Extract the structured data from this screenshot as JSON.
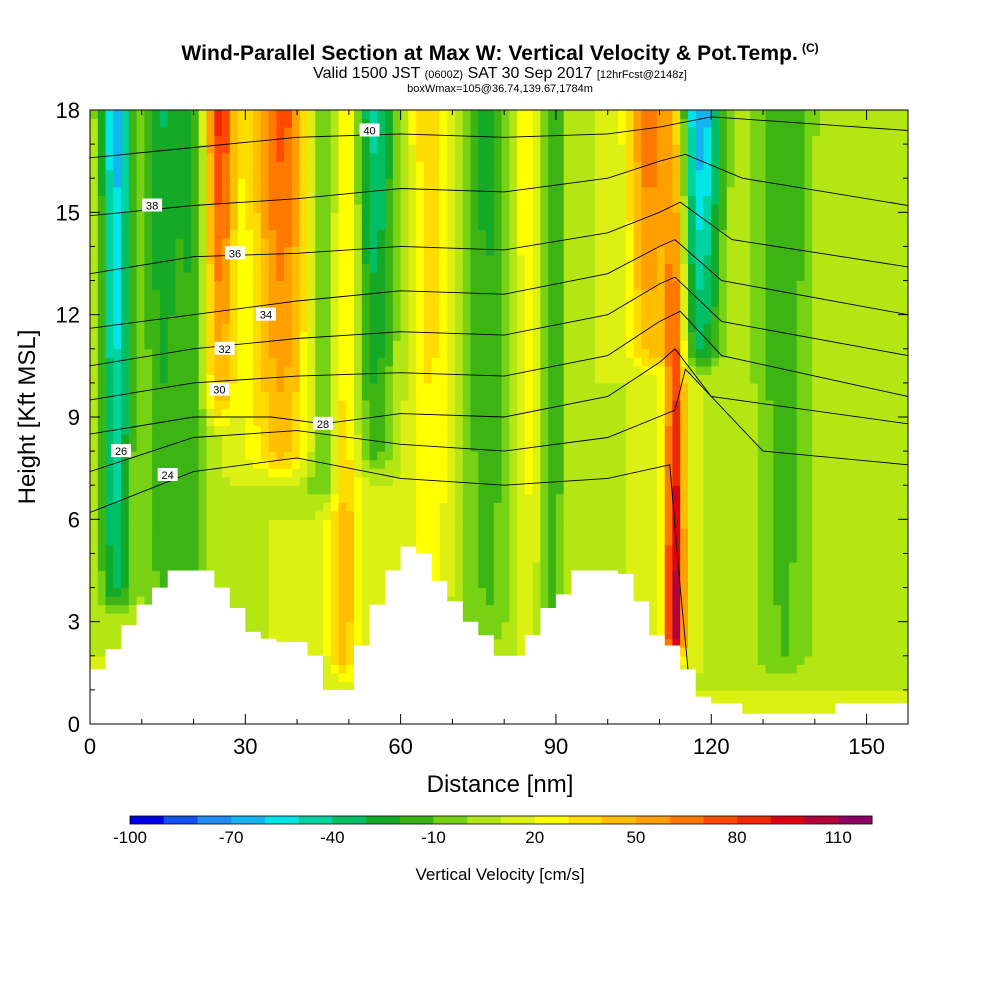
{
  "title": {
    "main": "Wind-Parallel Section at Max W: Vertical Velocity & Pot.Temp.",
    "mark": "(C)",
    "sub_a": "Valid 1500 JST",
    "sub_b": "(0600Z)",
    "sub_c": "SAT 30 Sep 2017",
    "sub_d": "[12hrFcst@2148z]",
    "box": "boxWmax=105@36.74,139.67,1784m"
  },
  "chart_data": {
    "type": "heatmap",
    "xlabel": "Distance [nm]",
    "ylabel": "Height [Kft MSL]",
    "xlim": [
      0,
      158
    ],
    "ylim": [
      0,
      18
    ],
    "x_ticks": [
      0,
      30,
      60,
      90,
      120,
      150
    ],
    "y_ticks": [
      0,
      3,
      6,
      9,
      12,
      15,
      18
    ],
    "colorbar": {
      "label": "Vertical Velocity [cm/s]",
      "min": -100,
      "max": 120,
      "step": 10,
      "tick_labels": [
        "-100",
        "-70",
        "-40",
        "-10",
        "20",
        "50",
        "80",
        "110"
      ],
      "tick_values": [
        -100,
        -70,
        -40,
        -10,
        20,
        50,
        80,
        110
      ],
      "colors": [
        "#0000e6",
        "#1450f0",
        "#1e8cf0",
        "#14b4f0",
        "#00e6e6",
        "#00d2a0",
        "#00be64",
        "#14aa28",
        "#3cb414",
        "#78d214",
        "#b4e614",
        "#dcf014",
        "#ffff00",
        "#ffdc00",
        "#ffbe00",
        "#ffa000",
        "#ff7800",
        "#ff4b00",
        "#f02800",
        "#dc0014",
        "#b4003c",
        "#8c0064"
      ]
    },
    "velocity_columns": [
      {
        "x": 5,
        "w": 3,
        "vmin": -45,
        "vmax": -75,
        "ybot": 4
      },
      {
        "x": 14,
        "w": 4,
        "vmin": -20,
        "vmax": -40,
        "ybot": 3
      },
      {
        "x": 20,
        "w": 3,
        "vmin": -20,
        "vmax": -30,
        "ybot": 3
      },
      {
        "x": 25,
        "w": 3,
        "vmin": 35,
        "vmax": 75,
        "ybot": 9.5
      },
      {
        "x": 37,
        "w": 6,
        "vmin": 35,
        "vmax": 65,
        "ybot": 8
      },
      {
        "x": 46,
        "w": 4,
        "vmin": -25,
        "vmax": -40,
        "ybot": 7
      },
      {
        "x": 49,
        "w": 3,
        "vmin": 35,
        "vmax": 45,
        "ybot": 2
      },
      {
        "x": 55,
        "w": 4,
        "vmin": -25,
        "vmax": -55,
        "ybot": 8
      },
      {
        "x": 66,
        "w": 4,
        "vmin": 15,
        "vmax": 30,
        "ybot": 4
      },
      {
        "x": 77,
        "w": 6,
        "vmin": -20,
        "vmax": -35,
        "ybot": 3
      },
      {
        "x": 85,
        "w": 4,
        "vmin": 15,
        "vmax": 30,
        "ybot": 3
      },
      {
        "x": 89,
        "w": 3,
        "vmin": -30,
        "vmax": -35,
        "ybot": 3
      },
      {
        "x": 108,
        "w": 4,
        "vmin": 35,
        "vmax": 60,
        "ybot": 11
      },
      {
        "x": 113,
        "w": 2,
        "vmin": 100,
        "vmax": 35,
        "ybot": 2.5
      },
      {
        "x": 118,
        "w": 4,
        "vmin": -40,
        "vmax": -80,
        "ybot": 11
      },
      {
        "x": 134,
        "w": 6,
        "vmin": -20,
        "vmax": -30,
        "ybot": 2
      }
    ],
    "theta_contours": [
      {
        "label": "24",
        "label_x": 15,
        "label_y": 7.3,
        "points": [
          [
            0,
            6.2
          ],
          [
            20,
            7.4
          ],
          [
            40,
            7.8
          ],
          [
            60,
            7.2
          ],
          [
            80,
            7.0
          ],
          [
            100,
            7.2
          ],
          [
            112,
            7.6
          ],
          [
            114,
            4
          ],
          [
            116,
            0.8
          ]
        ]
      },
      {
        "label": "26",
        "label_x": 6,
        "label_y": 8.0,
        "points": [
          [
            0,
            7.4
          ],
          [
            20,
            8.4
          ],
          [
            40,
            8.6
          ],
          [
            60,
            8.2
          ],
          [
            80,
            8.0
          ],
          [
            100,
            8.4
          ],
          [
            113,
            9.2
          ],
          [
            115,
            10.4
          ],
          [
            130,
            8.0
          ],
          [
            158,
            7.6
          ]
        ]
      },
      {
        "label": "28",
        "label_x": 45,
        "label_y": 8.8,
        "points": [
          [
            0,
            8.5
          ],
          [
            20,
            9.0
          ],
          [
            35,
            9.0
          ],
          [
            45,
            8.8
          ],
          [
            60,
            9.1
          ],
          [
            80,
            9.0
          ],
          [
            100,
            9.6
          ],
          [
            110,
            10.6
          ],
          [
            113,
            11.0
          ],
          [
            120,
            9.6
          ],
          [
            158,
            8.8
          ]
        ]
      },
      {
        "label": "30",
        "label_x": 25,
        "label_y": 9.8,
        "points": [
          [
            0,
            9.5
          ],
          [
            20,
            10.0
          ],
          [
            40,
            10.2
          ],
          [
            60,
            10.3
          ],
          [
            80,
            10.2
          ],
          [
            100,
            10.8
          ],
          [
            110,
            11.8
          ],
          [
            114,
            12.1
          ],
          [
            122,
            10.8
          ],
          [
            158,
            9.6
          ]
        ]
      },
      {
        "label": "32",
        "label_x": 26,
        "label_y": 11.0,
        "points": [
          [
            0,
            10.5
          ],
          [
            20,
            11.0
          ],
          [
            40,
            11.3
          ],
          [
            60,
            11.5
          ],
          [
            80,
            11.4
          ],
          [
            100,
            12.0
          ],
          [
            110,
            12.9
          ],
          [
            113,
            13.1
          ],
          [
            122,
            11.8
          ],
          [
            158,
            10.8
          ]
        ]
      },
      {
        "label": "34",
        "label_x": 34,
        "label_y": 12.0,
        "points": [
          [
            0,
            11.6
          ],
          [
            20,
            12.0
          ],
          [
            40,
            12.4
          ],
          [
            60,
            12.7
          ],
          [
            80,
            12.6
          ],
          [
            100,
            13.2
          ],
          [
            110,
            14.0
          ],
          [
            113,
            14.2
          ],
          [
            122,
            13.0
          ],
          [
            158,
            12.0
          ]
        ]
      },
      {
        "label": "36",
        "label_x": 28,
        "label_y": 13.8,
        "points": [
          [
            0,
            13.2
          ],
          [
            20,
            13.7
          ],
          [
            40,
            13.8
          ],
          [
            60,
            14.0
          ],
          [
            80,
            13.9
          ],
          [
            100,
            14.4
          ],
          [
            110,
            15.0
          ],
          [
            114,
            15.3
          ],
          [
            124,
            14.2
          ],
          [
            158,
            13.4
          ]
        ]
      },
      {
        "label": "38",
        "label_x": 12,
        "label_y": 15.2,
        "points": [
          [
            0,
            14.9
          ],
          [
            20,
            15.2
          ],
          [
            40,
            15.4
          ],
          [
            60,
            15.7
          ],
          [
            80,
            15.6
          ],
          [
            100,
            16.0
          ],
          [
            110,
            16.5
          ],
          [
            115,
            16.7
          ],
          [
            126,
            16.0
          ],
          [
            158,
            15.2
          ]
        ]
      },
      {
        "label": "40",
        "label_x": 54,
        "label_y": 17.4,
        "points": [
          [
            0,
            16.6
          ],
          [
            20,
            16.9
          ],
          [
            40,
            17.2
          ],
          [
            60,
            17.3
          ],
          [
            80,
            17.2
          ],
          [
            100,
            17.3
          ],
          [
            110,
            17.5
          ],
          [
            120,
            17.8
          ],
          [
            158,
            17.4
          ]
        ]
      }
    ],
    "terrain": {
      "x": [
        0,
        3,
        6,
        9,
        12,
        15,
        18,
        21,
        24,
        27,
        30,
        33,
        36,
        39,
        42,
        45,
        48,
        51,
        54,
        57,
        60,
        63,
        66,
        69,
        72,
        75,
        78,
        81,
        84,
        87,
        90,
        93,
        96,
        99,
        102,
        105,
        108,
        111,
        114,
        117,
        120,
        123,
        126,
        129,
        132,
        135,
        138,
        141,
        144,
        147,
        150,
        153,
        156,
        158
      ],
      "y": [
        1.6,
        2.2,
        2.9,
        3.5,
        4.0,
        4.5,
        4.5,
        4.5,
        4.0,
        3.4,
        2.7,
        2.5,
        2.4,
        2.4,
        2.0,
        1.0,
        1.0,
        2.3,
        3.5,
        4.5,
        5.2,
        5.0,
        4.2,
        3.6,
        3.0,
        2.6,
        2.0,
        2.0,
        2.6,
        3.4,
        3.8,
        4.5,
        4.5,
        4.5,
        4.4,
        3.6,
        2.6,
        2.3,
        1.6,
        0.8,
        0.6,
        0.6,
        0.3,
        0.3,
        0.3,
        0.3,
        0.3,
        0.3,
        0.6,
        0.6,
        0.6,
        0.6,
        0.6,
        0.6
      ]
    }
  }
}
